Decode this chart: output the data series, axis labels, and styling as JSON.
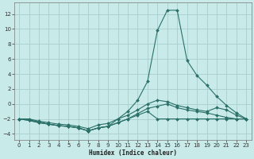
{
  "xlabel": "Humidex (Indice chaleur)",
  "bg_color": "#c8eae8",
  "grid_color": "#a8cece",
  "line_color": "#2a7068",
  "xlim": [
    -0.5,
    23.5
  ],
  "ylim": [
    -4.8,
    13.5
  ],
  "xticks": [
    0,
    1,
    2,
    3,
    4,
    5,
    6,
    7,
    8,
    9,
    10,
    11,
    12,
    13,
    14,
    15,
    16,
    17,
    18,
    19,
    20,
    21,
    22,
    23
  ],
  "yticks": [
    -4,
    -2,
    0,
    2,
    4,
    6,
    8,
    10,
    12
  ],
  "line1_x": [
    0,
    1,
    2,
    3,
    4,
    5,
    6,
    7,
    8,
    9,
    10,
    11,
    12,
    13,
    14,
    15,
    16,
    17,
    18,
    19,
    20,
    21,
    22,
    23
  ],
  "line1_y": [
    -2.0,
    -2.2,
    -2.5,
    -2.7,
    -2.9,
    -3.0,
    -3.2,
    -3.6,
    -3.2,
    -3.0,
    -2.5,
    -2.0,
    -1.5,
    -1.0,
    -2.0,
    -2.0,
    -2.0,
    -2.0,
    -2.0,
    -2.0,
    -2.0,
    -2.0,
    -2.0,
    -2.0
  ],
  "line2_x": [
    0,
    1,
    2,
    3,
    4,
    5,
    6,
    7,
    8,
    9,
    10,
    11,
    12,
    13,
    14,
    15,
    16,
    17,
    18,
    19,
    20,
    21,
    22,
    23
  ],
  "line2_y": [
    -2.0,
    -2.1,
    -2.4,
    -2.7,
    -2.9,
    -3.0,
    -3.2,
    -3.6,
    -3.2,
    -3.0,
    -2.5,
    -2.0,
    -1.3,
    -0.6,
    -0.3,
    0.0,
    -0.5,
    -0.8,
    -1.0,
    -1.2,
    -1.5,
    -1.8,
    -2.0,
    -2.0
  ],
  "line3_x": [
    0,
    1,
    2,
    3,
    4,
    5,
    6,
    7,
    8,
    9,
    10,
    11,
    12,
    13,
    14,
    15,
    16,
    17,
    18,
    19,
    20,
    21,
    22,
    23
  ],
  "line3_y": [
    -2.0,
    -2.0,
    -2.3,
    -2.5,
    -2.7,
    -2.8,
    -3.0,
    -3.3,
    -2.8,
    -2.6,
    -2.0,
    -1.5,
    -0.8,
    0.0,
    0.5,
    0.3,
    -0.2,
    -0.5,
    -0.8,
    -1.0,
    -0.5,
    -0.8,
    -1.5,
    -2.0
  ],
  "line4_x": [
    0,
    1,
    2,
    3,
    4,
    5,
    6,
    7,
    8,
    9,
    10,
    11,
    12,
    13,
    14,
    15,
    16,
    17,
    18,
    19,
    20,
    21,
    22,
    23
  ],
  "line4_y": [
    -2.0,
    -2.2,
    -2.5,
    -2.7,
    -2.9,
    -3.0,
    -3.2,
    -3.6,
    -3.2,
    -3.0,
    -2.0,
    -1.0,
    0.5,
    3.0,
    9.8,
    12.5,
    12.5,
    5.8,
    3.8,
    2.5,
    1.0,
    -0.2,
    -1.2,
    -2.0
  ]
}
